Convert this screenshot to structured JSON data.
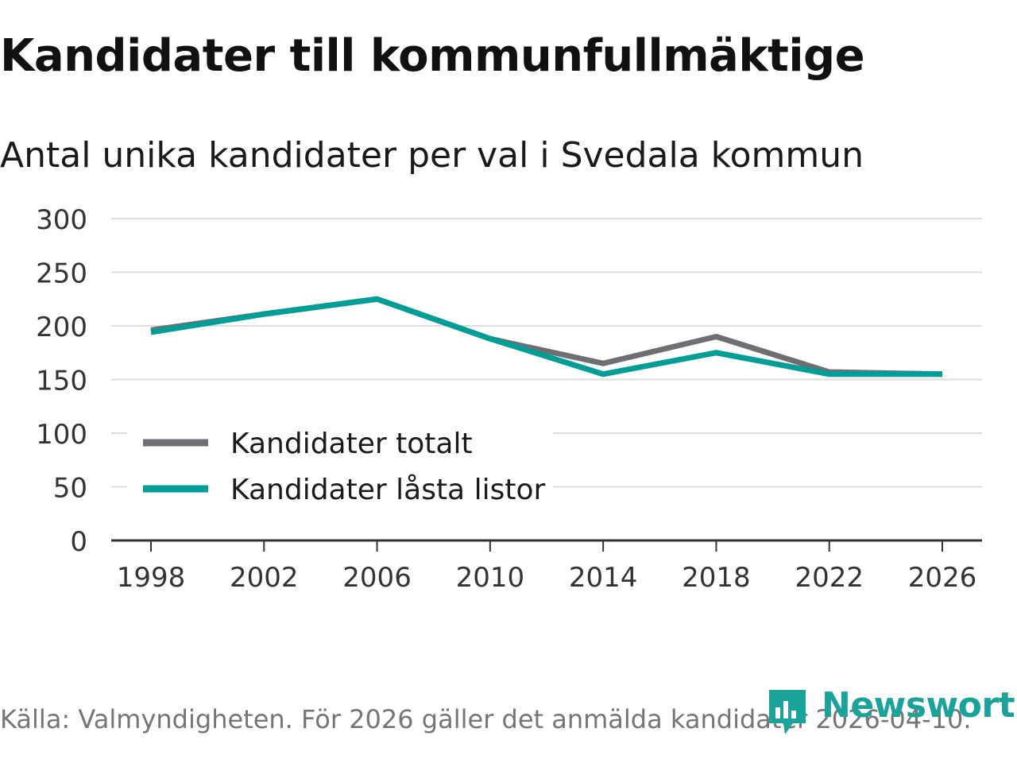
{
  "title": "Kandidater till kommunfullmäktige",
  "subtitle": "Antal unika kandidater per val i Svedala kommun",
  "source": "Källa: Valmyndigheten. För 2026 gäller det anmälda kandidater 2026-04-10.",
  "brand": "Newsworthy",
  "colors": {
    "totalt": "#6e6e73",
    "lasta": "#009e96",
    "grid": "#dddddd",
    "axis": "#333333",
    "brand": "#1aa39a"
  },
  "chart_data": {
    "type": "line",
    "title": "Kandidater till kommunfullmäktige",
    "subtitle": "Antal unika kandidater per val i Svedala kommun",
    "xlabel": "",
    "ylabel": "",
    "x": [
      1998,
      2002,
      2006,
      2010,
      2014,
      2018,
      2022,
      2026
    ],
    "ylim": [
      0,
      300
    ],
    "yticks": [
      0,
      50,
      100,
      150,
      200,
      250,
      300
    ],
    "xticks": [
      "1998",
      "2002",
      "2006",
      "2010",
      "2014",
      "2018",
      "2022",
      "2026"
    ],
    "legend_position": "bottom-left",
    "series": [
      {
        "name": "Kandidater totalt",
        "values": [
          196,
          211,
          225,
          188,
          165,
          190,
          157,
          155
        ]
      },
      {
        "name": "Kandidater låsta listor",
        "values": [
          194,
          211,
          225,
          188,
          155,
          175,
          155,
          155
        ]
      }
    ]
  }
}
